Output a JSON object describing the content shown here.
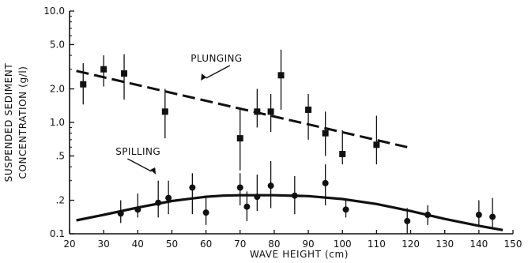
{
  "chart_data": {
    "type": "scatter",
    "xlabel": "WAVE HEIGHT (cm)",
    "ylabel_line1": "SUSPENDED SEDIMENT",
    "ylabel_line2": "CONCENTRATION (g/l)",
    "xlim": [
      20,
      150
    ],
    "ylim": [
      0.1,
      10.0
    ],
    "yscale": "log",
    "x_ticks": [
      20,
      30,
      40,
      50,
      60,
      70,
      80,
      90,
      100,
      110,
      120,
      130,
      140,
      150
    ],
    "x_tick_labels": [
      "20",
      "30",
      "40",
      "50",
      "60",
      "70",
      "80",
      "90",
      "100",
      "110",
      "120",
      "130",
      "140",
      "150"
    ],
    "y_ticks": [
      0.1,
      0.2,
      0.5,
      1.0,
      2.0,
      5.0,
      10.0
    ],
    "y_tick_labels": [
      "0.1",
      ".2",
      ".5",
      "1.0",
      "2.0",
      "5.0",
      "10.0"
    ],
    "grid": false,
    "annotations": {
      "plunging": "PLUNGING",
      "spilling": "SPILLING"
    },
    "series": [
      {
        "marker": "square",
        "points": [
          {
            "x": 24,
            "y": 2.2,
            "lo": 1.45,
            "hi": 3.4
          },
          {
            "x": 30,
            "y": 3.0,
            "lo": 2.1,
            "hi": 4.0
          },
          {
            "x": 36,
            "y": 2.75,
            "lo": 1.6,
            "hi": 4.1
          },
          {
            "x": 48,
            "y": 1.25,
            "lo": 0.72,
            "hi": 2.0
          },
          {
            "x": 70,
            "y": 0.72,
            "lo": 0.37,
            "hi": 1.3
          },
          {
            "x": 75,
            "y": 1.25,
            "lo": 0.9,
            "hi": 2.0
          },
          {
            "x": 79,
            "y": 1.25,
            "lo": 0.82,
            "hi": 1.8
          },
          {
            "x": 82,
            "y": 2.65,
            "lo": 1.3,
            "hi": 4.5
          },
          {
            "x": 90,
            "y": 1.3,
            "lo": 0.7,
            "hi": 1.8
          },
          {
            "x": 95,
            "y": 0.8,
            "lo": 0.5,
            "hi": 1.25
          },
          {
            "x": 100,
            "y": 0.52,
            "lo": 0.42,
            "hi": 0.85
          },
          {
            "x": 110,
            "y": 0.63,
            "lo": 0.42,
            "hi": 1.15
          }
        ],
        "trend": {
          "style": "dashed",
          "x": [
            22,
            119
          ],
          "y": [
            2.9,
            0.6
          ]
        }
      },
      {
        "marker": "circle",
        "points": [
          {
            "x": 35,
            "y": 0.152,
            "lo": 0.125,
            "hi": 0.2
          },
          {
            "x": 40,
            "y": 0.165,
            "lo": 0.14,
            "hi": 0.23
          },
          {
            "x": 46,
            "y": 0.19,
            "lo": 0.14,
            "hi": 0.3
          },
          {
            "x": 49,
            "y": 0.21,
            "lo": 0.15,
            "hi": 0.3
          },
          {
            "x": 56,
            "y": 0.26,
            "lo": 0.15,
            "hi": 0.35
          },
          {
            "x": 60,
            "y": 0.155,
            "lo": 0.12,
            "hi": 0.21
          },
          {
            "x": 70,
            "y": 0.26,
            "lo": 0.18,
            "hi": 0.35
          },
          {
            "x": 72,
            "y": 0.175,
            "lo": 0.13,
            "hi": 0.24
          },
          {
            "x": 75,
            "y": 0.215,
            "lo": 0.16,
            "hi": 0.34
          },
          {
            "x": 79,
            "y": 0.27,
            "lo": 0.17,
            "hi": 0.45
          },
          {
            "x": 86,
            "y": 0.22,
            "lo": 0.15,
            "hi": 0.33
          },
          {
            "x": 95,
            "y": 0.285,
            "lo": 0.18,
            "hi": 0.42
          },
          {
            "x": 101,
            "y": 0.165,
            "lo": 0.14,
            "hi": 0.2
          },
          {
            "x": 119,
            "y": 0.13,
            "lo": 0.1,
            "hi": 0.17
          },
          {
            "x": 125,
            "y": 0.148,
            "lo": 0.12,
            "hi": 0.18
          },
          {
            "x": 140,
            "y": 0.148,
            "lo": 0.12,
            "hi": 0.2
          },
          {
            "x": 144,
            "y": 0.142,
            "lo": 0.115,
            "hi": 0.21
          }
        ],
        "trend": {
          "style": "solid",
          "x": [
            22,
            30,
            40,
            50,
            60,
            65,
            70,
            80,
            90,
            100,
            110,
            120,
            130,
            140,
            147
          ],
          "y": [
            0.132,
            0.148,
            0.172,
            0.197,
            0.215,
            0.22,
            0.222,
            0.222,
            0.218,
            0.205,
            0.185,
            0.16,
            0.136,
            0.118,
            0.108
          ]
        }
      }
    ]
  }
}
